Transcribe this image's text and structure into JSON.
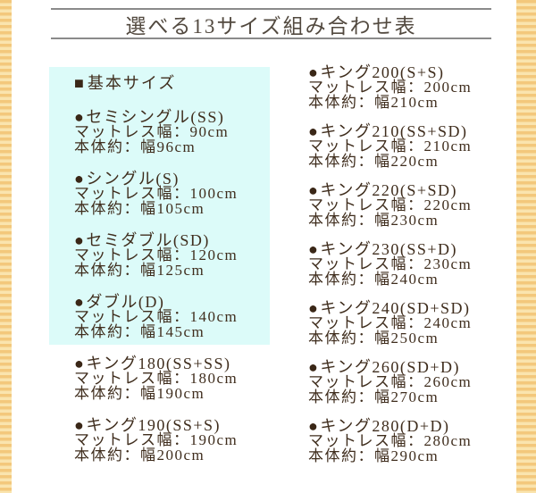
{
  "title": {
    "text": "選べる13サイズ組み合わせ表"
  },
  "bullets": {
    "square": "■",
    "circle": "●"
  },
  "basic_size_header": {
    "label": "基本サイズ"
  },
  "left_items": [
    {
      "name": "セミシングル(SS)",
      "mattress": "マットレス幅：90cm",
      "body": "本体約：幅96cm",
      "highlighted": true
    },
    {
      "name": "シングル(S)",
      "mattress": "マットレス幅：100cm",
      "body": "本体約：幅105cm",
      "highlighted": true
    },
    {
      "name": "セミダブル(SD)",
      "mattress": "マットレス幅：120cm",
      "body": "本体約：幅125cm",
      "highlighted": true
    },
    {
      "name": "ダブル(D)",
      "mattress": "マットレス幅：140cm",
      "body": "本体約：幅145cm",
      "highlighted": true
    },
    {
      "name": "キング180(SS+SS)",
      "mattress": "マットレス幅：180cm",
      "body": "本体約：幅190cm",
      "highlighted": false
    },
    {
      "name": "キング190(SS+S)",
      "mattress": "マットレス幅：190cm",
      "body": "本体約：幅200cm",
      "highlighted": false
    }
  ],
  "right_items": [
    {
      "name": "キング200(S+S)",
      "mattress": "マットレス幅：200cm",
      "body": "本体約：幅210cm",
      "highlighted": false
    },
    {
      "name": "キング210(SS+SD)",
      "mattress": "マットレス幅：210cm",
      "body": "本体約：幅220cm",
      "highlighted": false
    },
    {
      "name": "キング220(S+SD)",
      "mattress": "マットレス幅：220cm",
      "body": "本体約：幅230cm",
      "highlighted": false
    },
    {
      "name": "キング230(SS+D)",
      "mattress": "マットレス幅：230cm",
      "body": "本体約：幅240cm",
      "highlighted": false
    },
    {
      "name": "キング240(SD+SD)",
      "mattress": "マットレス幅：240cm",
      "body": "本体約：幅250cm",
      "highlighted": false
    },
    {
      "name": "キング260(SD+D)",
      "mattress": "マットレス幅：260cm",
      "body": "本体約：幅270cm",
      "highlighted": false
    },
    {
      "name": "キング280(D+D)",
      "mattress": "マットレス幅：280cm",
      "body": "本体約：幅290cm",
      "highlighted": false
    }
  ],
  "colors": {
    "stripe_dark": "#f3c87c",
    "stripe_light": "#fae4ae",
    "highlight_box_bg": "#dcfbf9",
    "text": "#3f2d1d",
    "bullet": "#3a2717",
    "title_text": "#52493f",
    "rule_line": "#8a8a8a"
  }
}
